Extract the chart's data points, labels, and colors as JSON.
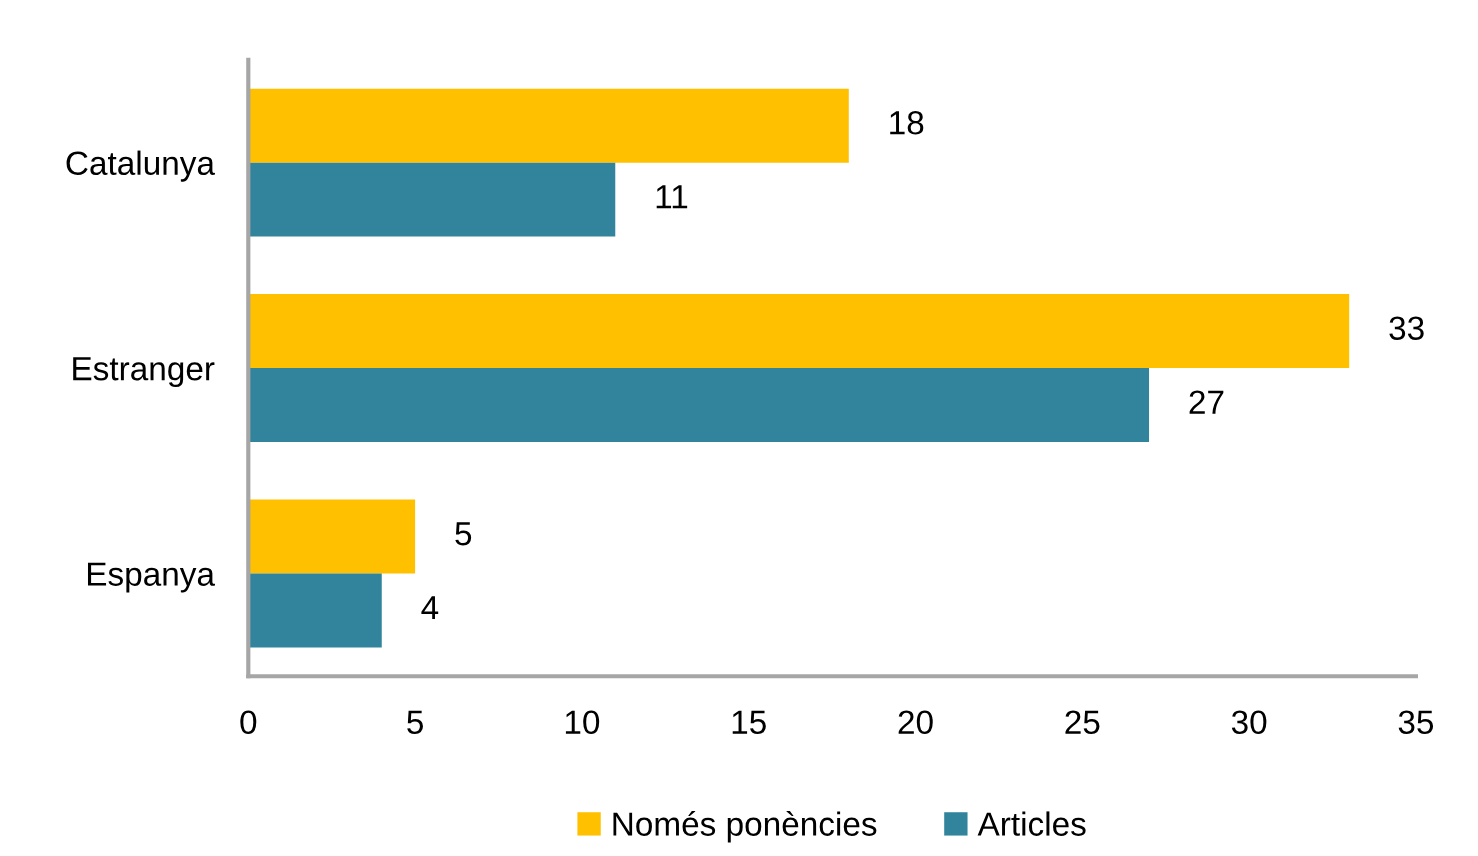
{
  "chart_data": {
    "type": "bar",
    "orientation": "horizontal",
    "categories": [
      "Catalunya",
      "Estranger",
      "Espanya"
    ],
    "series": [
      {
        "name": "Només ponències",
        "color": "#ffc000",
        "values": [
          18,
          33,
          5
        ]
      },
      {
        "name": "Articles",
        "color": "#31849b",
        "values": [
          11,
          27,
          4
        ]
      }
    ],
    "xlim": [
      0,
      35
    ],
    "xticks": [
      0,
      5,
      10,
      15,
      20,
      25,
      30,
      35
    ],
    "data_labels": true,
    "grid": false,
    "legend": "bottom"
  }
}
